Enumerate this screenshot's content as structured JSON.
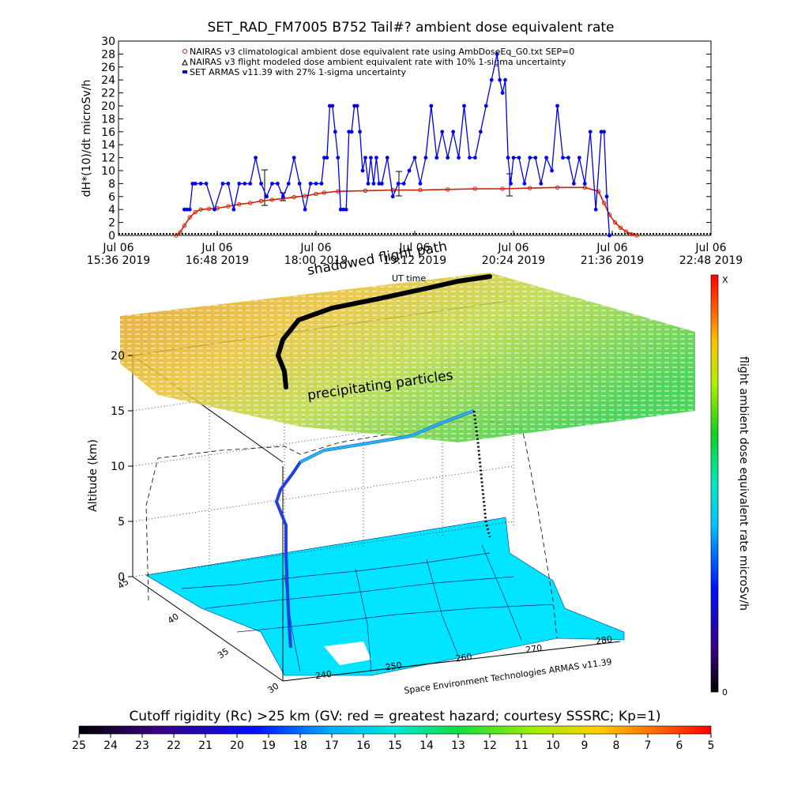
{
  "chart_data": [
    {
      "type": "line",
      "title": "SET_RAD_FM7005  B752 Tail#? ambient dose equivalent rate",
      "ylabel": "dH*(10)/dt microSv/h",
      "ylim": [
        0,
        30
      ],
      "yticks": [
        0,
        2,
        4,
        6,
        8,
        10,
        12,
        14,
        16,
        18,
        20,
        22,
        24,
        26,
        28,
        30
      ],
      "xlim_minutes": [
        0,
        432
      ],
      "xticks": [
        {
          "m": 0,
          "line1": "Jul 06",
          "line2": "15:36 2019"
        },
        {
          "m": 72,
          "line1": "Jul 06",
          "line2": "16:48 2019"
        },
        {
          "m": 144,
          "line1": "Jul 06",
          "line2": "18:00 2019"
        },
        {
          "m": 216,
          "line1": "Jul 06",
          "line2": "19:12 2019"
        },
        {
          "m": 288,
          "line1": "Jul 06",
          "line2": "20:24 2019"
        },
        {
          "m": 360,
          "line1": "Jul 06",
          "line2": "21:36 2019"
        },
        {
          "m": 432,
          "line1": "Jul 06",
          "line2": "22:48 2019"
        }
      ],
      "legend": [
        "NAIRAS v3 climatological ambient dose equivalent rate using AmbDoseEq_G0.txt SEP=0",
        "NAIRAS v3 flight modeled dose ambient equivalent rate with 10% 1-sigma uncertainty",
        "SET ARMAS v11.39 with 27% 1-sigma uncertainty"
      ],
      "legend_position": "top",
      "series": [
        {
          "name": "NAIRAS v3 climatological ambient dose equivalent rate using AmbDoseEq_G0.txt SEP=0",
          "color": "#cc2200",
          "x": [
            42,
            45,
            48,
            52,
            56,
            60,
            66,
            72,
            80,
            88,
            96,
            104,
            112,
            120,
            128,
            136,
            144,
            150,
            160,
            180,
            200,
            220,
            240,
            260,
            280,
            300,
            320,
            340,
            350,
            354,
            358,
            362,
            366,
            370,
            374,
            378
          ],
          "y": [
            0,
            0.5,
            1.5,
            2.8,
            3.6,
            4.0,
            4.1,
            4.2,
            4.5,
            4.8,
            5.0,
            5.3,
            5.5,
            5.7,
            5.9,
            6.1,
            6.4,
            6.6,
            6.8,
            6.9,
            7.0,
            7.0,
            7.1,
            7.2,
            7.2,
            7.3,
            7.4,
            7.4,
            6.8,
            5.0,
            3.2,
            2.0,
            1.2,
            0.6,
            0.2,
            0
          ]
        },
        {
          "name": "SET ARMAS v11.39 with 27% 1-sigma uncertainty",
          "color": "#0000ee",
          "x": [
            48,
            50,
            52,
            54,
            56,
            60,
            64,
            70,
            76,
            80,
            84,
            88,
            92,
            96,
            100,
            104,
            108,
            112,
            116,
            120,
            124,
            128,
            132,
            136,
            140,
            144,
            148,
            150,
            152,
            154,
            156,
            158,
            160,
            162,
            164,
            166,
            168,
            170,
            172,
            174,
            176,
            178,
            180,
            182,
            184,
            186,
            188,
            190,
            192,
            196,
            200,
            204,
            208,
            212,
            216,
            220,
            224,
            228,
            232,
            236,
            240,
            244,
            248,
            252,
            256,
            260,
            264,
            268,
            272,
            276,
            278,
            280,
            282,
            284,
            286,
            288,
            292,
            296,
            300,
            304,
            308,
            312,
            316,
            320,
            324,
            328,
            332,
            336,
            340,
            344,
            348,
            352,
            354,
            356,
            358
          ],
          "y": [
            4,
            4,
            4,
            8,
            8,
            8,
            8,
            4,
            8,
            8,
            4,
            8,
            8,
            8,
            12,
            8,
            6,
            8,
            8,
            6,
            8,
            12,
            8,
            4,
            8,
            8,
            8,
            12,
            12,
            20,
            20,
            16,
            12,
            4,
            4,
            4,
            16,
            16,
            20,
            20,
            16,
            10,
            12,
            8,
            12,
            8,
            12,
            8,
            8,
            12,
            6,
            8,
            8,
            10,
            12,
            8,
            12,
            20,
            12,
            16,
            12,
            16,
            12,
            20,
            12,
            12,
            16,
            20,
            24,
            28,
            24,
            22,
            24,
            12,
            8,
            12,
            12,
            8,
            12,
            12,
            8,
            12,
            10,
            20,
            12,
            12,
            8,
            12,
            8,
            16,
            4,
            16,
            16,
            6,
            0
          ]
        }
      ]
    },
    {
      "type": "scatter",
      "title": "",
      "zlabel": "Altitude (km)",
      "zticks": [
        0,
        5,
        10,
        15,
        20
      ],
      "lat_ticks": [
        30,
        35,
        40,
        45
      ],
      "lon_ticks": [
        240,
        250,
        260,
        270,
        280
      ],
      "annotations": [
        "shadowed flight path",
        "precipitating particles",
        "UT time"
      ],
      "footer": "Space Environment Technologies ARMAS v11.39",
      "colorbar": {
        "label": "flight ambient dose equivalent rate microSv/h",
        "top_label": "X",
        "bottom_label": "0"
      }
    },
    {
      "type": "heatmap",
      "title": "Cutoff rigidity (Rc) >25 km (GV: red = greatest hazard; courtesy SSSRC; Kp=1)",
      "colorbar_ticks": [
        25,
        24,
        23,
        22,
        21,
        20,
        19,
        18,
        17,
        16,
        15,
        14,
        13,
        12,
        11,
        10,
        9,
        8,
        7,
        6,
        5
      ]
    }
  ]
}
